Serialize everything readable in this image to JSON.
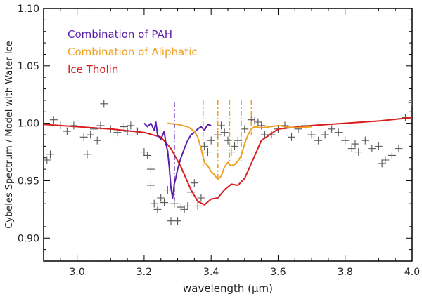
{
  "chart_data": {
    "type": "line",
    "xlabel": "wavelength (μm)",
    "ylabel": "Cybeles Spectrum / Model with Water Ice",
    "xlim": [
      2.9,
      4.0
    ],
    "ylim": [
      0.88,
      1.1
    ],
    "x_ticks": [
      3.0,
      3.2,
      3.4,
      3.6,
      3.8,
      4.0
    ],
    "x_tick_labels": [
      "3.0",
      "3.2",
      "3.4",
      "3.6",
      "3.8",
      "4.0"
    ],
    "y_ticks": [
      0.9,
      0.95,
      1.0,
      1.05,
      1.1
    ],
    "y_tick_labels": [
      "0.90",
      "0.95",
      "1.00",
      "1.05",
      "1.10"
    ],
    "legend": [
      {
        "label": "Combination of PAH",
        "color": "#5a1fa8"
      },
      {
        "label": "Combination of Aliphatic",
        "color": "#f0a020"
      },
      {
        "label": "Ice Tholin",
        "color": "#d81e1e"
      }
    ],
    "series": [
      {
        "name": "Ice Tholin",
        "color": "#d81e1e",
        "x": [
          2.9,
          3.1,
          3.2,
          3.25,
          3.28,
          3.31,
          3.34,
          3.36,
          3.38,
          3.4,
          3.42,
          3.44,
          3.46,
          3.48,
          3.5,
          3.52,
          3.55,
          3.6,
          3.7,
          3.8,
          3.9,
          4.0
        ],
        "y": [
          0.999,
          0.995,
          0.992,
          0.988,
          0.978,
          0.962,
          0.942,
          0.932,
          0.929,
          0.934,
          0.935,
          0.942,
          0.947,
          0.946,
          0.952,
          0.965,
          0.985,
          0.995,
          0.998,
          1.0,
          1.002,
          1.005
        ]
      },
      {
        "name": "Combination of PAH",
        "color": "#5a1fa8",
        "x": [
          3.2,
          3.21,
          3.22,
          3.23,
          3.235,
          3.24,
          3.25,
          3.26,
          3.265,
          3.27,
          3.275,
          3.28,
          3.285,
          3.29,
          3.295,
          3.3,
          3.31,
          3.32,
          3.33,
          3.34,
          3.35,
          3.36,
          3.37,
          3.38,
          3.39,
          3.4
        ],
        "y": [
          1.0,
          0.997,
          1.0,
          0.994,
          1.001,
          0.99,
          0.986,
          0.993,
          0.982,
          0.976,
          0.962,
          0.944,
          0.935,
          0.947,
          0.953,
          0.96,
          0.97,
          0.978,
          0.985,
          0.99,
          0.992,
          0.995,
          0.997,
          0.994,
          0.999,
          0.998
        ]
      },
      {
        "name": "Combination of Aliphatic",
        "color": "#f0a020",
        "x": [
          3.27,
          3.3,
          3.33,
          3.35,
          3.36,
          3.37,
          3.38,
          3.39,
          3.4,
          3.41,
          3.42,
          3.43,
          3.44,
          3.45,
          3.46,
          3.47,
          3.48,
          3.49,
          3.5,
          3.51,
          3.52,
          3.53,
          3.55,
          3.6,
          3.65,
          3.7
        ],
        "y": [
          1.0,
          0.999,
          0.997,
          0.993,
          0.988,
          0.978,
          0.966,
          0.963,
          0.958,
          0.955,
          0.951,
          0.954,
          0.962,
          0.966,
          0.963,
          0.964,
          0.967,
          0.972,
          0.982,
          0.99,
          0.995,
          0.997,
          0.996,
          0.998,
          0.996,
          0.997
        ]
      }
    ],
    "vlines": [
      {
        "x": 3.29,
        "y_bottom": 0.932,
        "y_top": 1.018,
        "color": "#5a1fa8",
        "style": "dash-dot"
      },
      {
        "x": 3.376,
        "y_bottom": 0.963,
        "y_top": 1.02,
        "color": "#f0a020",
        "style": "dash-dot"
      },
      {
        "x": 3.42,
        "y_bottom": 0.951,
        "y_top": 1.02,
        "color": "#f0a020",
        "style": "dash-dot"
      },
      {
        "x": 3.455,
        "y_bottom": 0.963,
        "y_top": 1.02,
        "color": "#f0a020",
        "style": "dash-dot"
      },
      {
        "x": 3.49,
        "y_bottom": 0.967,
        "y_top": 1.02,
        "color": "#f0a020",
        "style": "dash-dot"
      },
      {
        "x": 3.52,
        "y_bottom": 0.99,
        "y_top": 1.02,
        "color": "#f0a020",
        "style": "dash-dot"
      }
    ],
    "scatter": {
      "name": "Cybeles spectrum",
      "marker": "plus",
      "color": "#555555",
      "x": [
        2.91,
        2.92,
        2.93,
        2.95,
        2.97,
        2.99,
        3.02,
        3.03,
        3.04,
        3.05,
        3.06,
        3.07,
        3.08,
        3.1,
        3.12,
        3.14,
        3.15,
        3.16,
        3.18,
        3.2,
        3.21,
        3.22,
        3.22,
        3.23,
        3.24,
        3.25,
        3.26,
        3.27,
        3.28,
        3.29,
        3.3,
        3.31,
        3.32,
        3.33,
        3.34,
        3.35,
        3.36,
        3.37,
        3.38,
        3.39,
        3.4,
        3.42,
        3.43,
        3.44,
        3.45,
        3.46,
        3.47,
        3.48,
        3.5,
        3.52,
        3.53,
        3.54,
        3.55,
        3.56,
        3.58,
        3.6,
        3.62,
        3.64,
        3.66,
        3.68,
        3.7,
        3.72,
        3.74,
        3.76,
        3.78,
        3.8,
        3.82,
        3.83,
        3.84,
        3.86,
        3.88,
        3.9,
        3.91,
        3.92,
        3.94,
        3.96,
        3.98,
        4.0
      ],
      "y": [
        0.968,
        0.973,
        1.003,
        0.998,
        0.993,
        0.998,
        0.988,
        0.973,
        0.99,
        0.995,
        0.985,
        0.998,
        1.017,
        0.995,
        0.992,
        0.997,
        0.993,
        0.998,
        0.993,
        0.975,
        0.972,
        0.96,
        0.946,
        0.93,
        0.925,
        0.935,
        0.931,
        0.942,
        0.915,
        0.93,
        0.915,
        0.927,
        0.925,
        0.928,
        0.94,
        0.948,
        0.928,
        0.935,
        0.98,
        0.975,
        0.985,
        0.99,
        0.998,
        0.992,
        0.985,
        0.975,
        0.98,
        0.985,
        0.995,
        1.003,
        1.002,
        1.001,
        0.998,
        0.99,
        0.99,
        0.995,
        0.998,
        0.988,
        0.995,
        0.998,
        0.99,
        0.985,
        0.99,
        0.995,
        0.992,
        0.985,
        0.978,
        0.982,
        0.975,
        0.985,
        0.978,
        0.98,
        0.965,
        0.968,
        0.972,
        0.978,
        1.005,
        1.018
      ]
    }
  }
}
